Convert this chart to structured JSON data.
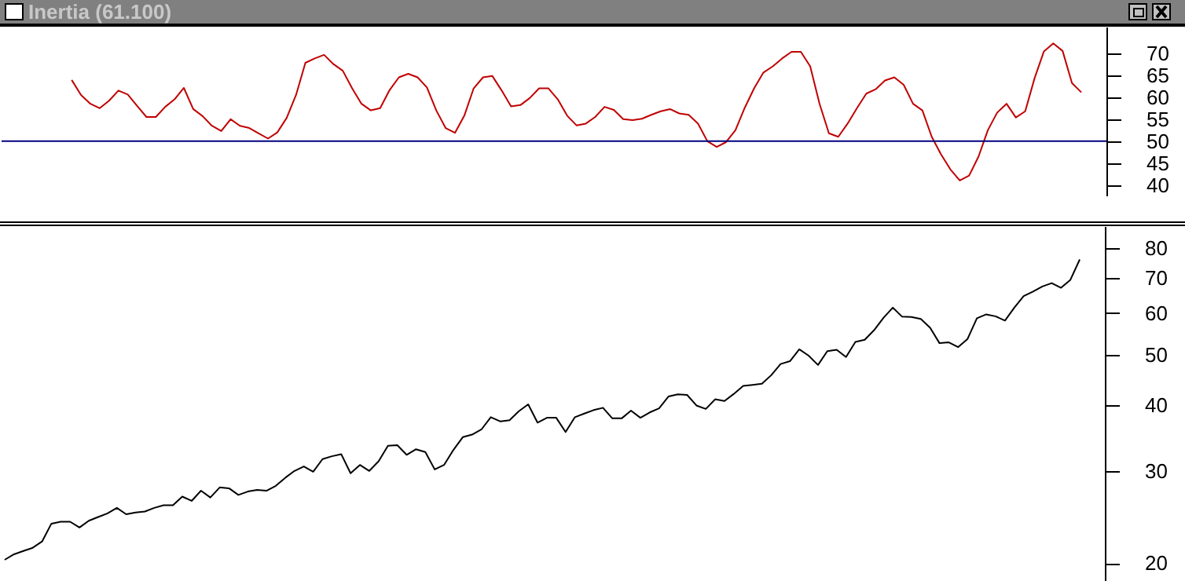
{
  "chart_data": [
    {
      "type": "line",
      "title": "Inertia (61.100)",
      "categories": [
        null,
        null,
        null,
        null,
        null,
        null,
        null,
        null,
        null,
        null,
        null,
        null,
        null,
        null,
        null,
        null,
        null,
        null,
        null,
        null,
        null,
        null,
        null,
        null,
        null,
        null,
        null,
        null,
        null,
        null,
        null,
        null,
        null,
        null,
        null,
        null,
        null,
        null,
        null,
        null,
        null,
        null,
        null,
        null,
        null,
        null,
        null,
        null,
        null,
        null,
        null,
        null,
        null,
        null,
        null,
        null,
        null,
        null,
        null,
        null,
        null,
        null,
        null,
        null,
        null,
        null,
        null,
        null,
        null,
        null,
        null,
        null,
        null,
        null,
        null,
        null,
        null,
        null,
        null,
        null,
        null,
        null,
        null,
        null,
        null,
        null,
        null,
        null,
        null,
        null,
        null,
        null,
        null,
        null,
        null,
        null,
        null,
        null,
        null,
        null,
        null,
        null,
        null,
        null,
        null,
        null,
        null,
        null,
        null,
        null,
        null,
        null,
        null,
        null,
        null,
        null
      ],
      "series": [
        {
          "color": "#c00000",
          "values": [
            null,
            null,
            null,
            null,
            null,
            null,
            null,
            63.9,
            60.5,
            58.5,
            57.5,
            59.2,
            61.5,
            60.6,
            58,
            55.5,
            55.5,
            57.8,
            59.5,
            62.1,
            57.3,
            55.7,
            53.5,
            52.3,
            55,
            53.5,
            53,
            51.8,
            50.6,
            52,
            55.3,
            60.5,
            67.8,
            68.8,
            69.6,
            67.5,
            66,
            62,
            58.5,
            57,
            57.5,
            61.6,
            64.5,
            65.3,
            64.5,
            62.2,
            57,
            53,
            51.9,
            55.8,
            62,
            64.5,
            64.8,
            61.5,
            57.9,
            58.2,
            59.8,
            62,
            62,
            59.5,
            55.8,
            53.6,
            54,
            55.5,
            57.8,
            57.1,
            55,
            54.8,
            55.1,
            56,
            56.8,
            57.3,
            56.3,
            56,
            54,
            50,
            48.7,
            49.8,
            52.5,
            57.6,
            62,
            65.6,
            67,
            68.8,
            70.3,
            70.3,
            67,
            58.5,
            51.8,
            51,
            54,
            57.5,
            60.8,
            61.8,
            63.8,
            64.5,
            62.8,
            58.5,
            57,
            51,
            47,
            43.6,
            41.1,
            42.2,
            46.5,
            52.5,
            56.5,
            58.5,
            55.4,
            56.8,
            64.3,
            70.4,
            72.2,
            70.5,
            63.2,
            61.1
          ]
        }
      ],
      "ylim": [
        37.5,
        76
      ],
      "yticks": [
        40,
        45,
        50,
        55,
        60,
        65,
        70
      ],
      "tick_labels": "y",
      "ref_lines": [
        {
          "axis": "y",
          "value": 50,
          "color": "#000080"
        }
      ]
    },
    {
      "type": "line",
      "categories": [
        null,
        null,
        null,
        null,
        null,
        null,
        null,
        null,
        null,
        null,
        null,
        null,
        null,
        null,
        null,
        null,
        null,
        null,
        null,
        null,
        null,
        null,
        null,
        null,
        null,
        null,
        null,
        null,
        null,
        null,
        null,
        null,
        null,
        null,
        null,
        null,
        null,
        null,
        null,
        null,
        null,
        null,
        null,
        null,
        null,
        null,
        null,
        null,
        null,
        null,
        null,
        null,
        null,
        null,
        null,
        null,
        null,
        null,
        null,
        null,
        null,
        null,
        null,
        null,
        null,
        null,
        null,
        null,
        null,
        null,
        null,
        null,
        null,
        null,
        null,
        null,
        null,
        null,
        null,
        null,
        null,
        null,
        null,
        null,
        null,
        null,
        null,
        null,
        null,
        null,
        null,
        null,
        null,
        null,
        null,
        null,
        null,
        null,
        null,
        null,
        null,
        null,
        null,
        null,
        null,
        null,
        null,
        null,
        null,
        null,
        null,
        null,
        null,
        null,
        null,
        null
      ],
      "series": [
        {
          "color": "#000000",
          "values": [
            20.3,
            20.8,
            21.1,
            21.4,
            22,
            23.8,
            24,
            24,
            23.4,
            24.1,
            24.5,
            24.9,
            25.5,
            24.8,
            25,
            25.1,
            25.5,
            25.8,
            25.8,
            26.8,
            26.3,
            27.5,
            26.7,
            27.9,
            27.8,
            27,
            27.4,
            27.6,
            27.5,
            28.1,
            29.1,
            30,
            30.6,
            29.9,
            31.6,
            32,
            32.3,
            29.7,
            30.8,
            30,
            31.3,
            33.5,
            33.6,
            32.2,
            33,
            32.6,
            30.2,
            30.8,
            32.9,
            34.8,
            35.2,
            36,
            38,
            37.3,
            37.5,
            39,
            40.2,
            37.1,
            37.9,
            37.9,
            35.6,
            38,
            38.6,
            39.2,
            39.6,
            37.8,
            37.8,
            39.1,
            37.9,
            38.8,
            39.5,
            41.6,
            42,
            41.9,
            40,
            39.4,
            41.1,
            40.8,
            42.1,
            43.6,
            43.8,
            44,
            45.7,
            48,
            48.6,
            51.2,
            49.8,
            47.8,
            50.8,
            51.1,
            49.5,
            52.9,
            53.4,
            55.7,
            58.8,
            61.5,
            59.1,
            59,
            58.5,
            56.3,
            52.6,
            52.8,
            51.7,
            53.6,
            58.7,
            59.7,
            59.2,
            58.1,
            61.5,
            64.7,
            66,
            67.5,
            68.5,
            67.1,
            69.5,
            76
          ]
        }
      ],
      "ylim": [
        17.5,
        88
      ],
      "yticks": [
        20,
        30,
        40,
        50,
        60,
        70,
        80
      ],
      "log": true,
      "tick_labels": "y"
    }
  ]
}
